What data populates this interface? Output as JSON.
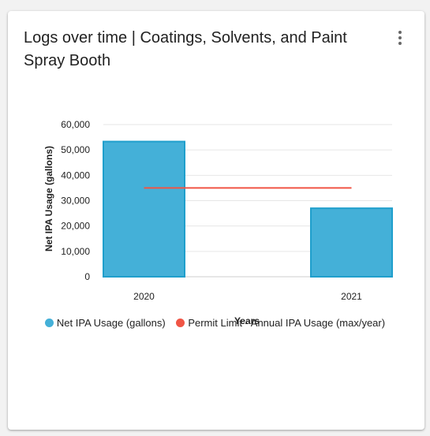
{
  "card": {
    "title": "Logs over time | Coatings, Solvents, and Paint Spray Booth",
    "menu_icon": "more-vertical-icon"
  },
  "chart_data": {
    "type": "bar",
    "categories": [
      "2020",
      "2021"
    ],
    "series": [
      {
        "name": "Net IPA Usage (gallons)",
        "type": "bar",
        "values": [
          53300,
          27000
        ],
        "color": "#44b0d8",
        "border_color": "#1f9fcc"
      },
      {
        "name": "Permit Limit - Annual IPA Usage (max/year)",
        "type": "line",
        "values": [
          35000,
          35000
        ],
        "color": "#f05545"
      }
    ],
    "xlabel": "Years",
    "ylabel": "Net IPA Usage (gallons)",
    "ylim": [
      0,
      60000
    ],
    "yticks": [
      "0",
      "10,000",
      "20,000",
      "30,000",
      "40,000",
      "50,000",
      "60,000"
    ],
    "grid": true,
    "legend": "bottom"
  }
}
